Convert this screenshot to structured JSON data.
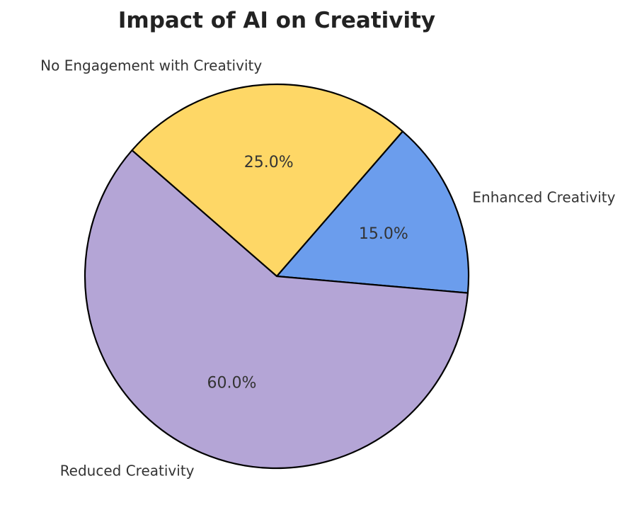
{
  "chart_data": {
    "type": "pie",
    "title": "Impact of AI on Creativity",
    "categories": [
      "Enhanced Creativity",
      "No Engagement with Creativity",
      "Reduced Creativity"
    ],
    "values": [
      15.0,
      25.0,
      60.0
    ],
    "value_labels": [
      "15.0%",
      "25.0%",
      "60.0%"
    ],
    "colors": [
      "#6b9ded",
      "#fed766",
      "#b4a5d6"
    ],
    "start_angle_deg": -5,
    "direction": "counterclockwise",
    "edge_color": "#000000"
  }
}
